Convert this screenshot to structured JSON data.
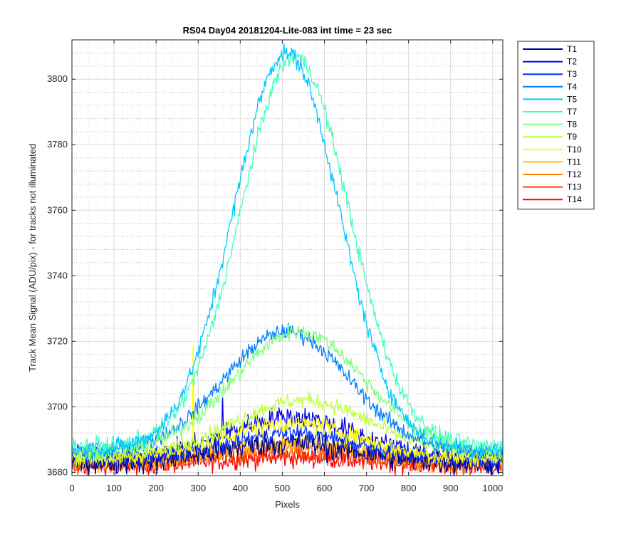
{
  "chart_data": {
    "type": "line",
    "title": "RS04 Day04 20181204-Lite-083 int time = 23 sec",
    "xlabel": "Pixels",
    "ylabel": "Track Mean Signal (ADU/pix) - for tracks not illuminated",
    "xlim": [
      0,
      1024
    ],
    "ylim": [
      3679,
      3812
    ],
    "xticks": [
      0,
      100,
      200,
      300,
      400,
      500,
      600,
      700,
      800,
      900,
      1000
    ],
    "yticks": [
      3680,
      3700,
      3720,
      3740,
      3760,
      3780,
      3800
    ],
    "grid": "major and minor",
    "legend_position": "outside-right",
    "series": [
      {
        "name": "T1",
        "color": "#00008f",
        "base": 3683,
        "peak": 3689,
        "center": 510,
        "width": 260,
        "noise": 2.0
      },
      {
        "name": "T2",
        "color": "#0000f0",
        "base": 3684,
        "peak": 3697,
        "center": 520,
        "width": 260,
        "noise": 1.6,
        "spike": {
          "x": 358,
          "y": 3703.5
        }
      },
      {
        "name": "T3",
        "color": "#0030ff",
        "base": 3684,
        "peak": 3692,
        "center": 520,
        "width": 260,
        "noise": 1.4
      },
      {
        "name": "T4",
        "color": "#007fff",
        "base": 3686,
        "peak": 3723,
        "center": 510,
        "width": 250,
        "noise": 1.2
      },
      {
        "name": "T5",
        "color": "#00c8ff",
        "base": 3687,
        "peak": 3808,
        "center": 510,
        "width": 210,
        "noise": 1.3
      },
      {
        "name": "T7",
        "color": "#40ffbf",
        "base": 3688,
        "peak": 3807,
        "center": 530,
        "width": 215,
        "noise": 1.3
      },
      {
        "name": "T8",
        "color": "#80ff80",
        "base": 3686,
        "peak": 3723,
        "center": 540,
        "width": 260,
        "noise": 1.2
      },
      {
        "name": "T9",
        "color": "#bfff40",
        "base": 3685,
        "peak": 3702,
        "center": 550,
        "width": 270,
        "noise": 1.2
      },
      {
        "name": "T10",
        "color": "#ffff00",
        "base": 3684,
        "peak": 3695,
        "center": 520,
        "width": 270,
        "noise": 1.3,
        "spike": {
          "x": 288,
          "y": 3718.5
        }
      },
      {
        "name": "T11",
        "color": "#ffbf00",
        "base": 3683,
        "peak": 3689,
        "center": 520,
        "width": 280,
        "noise": 1.4
      },
      {
        "name": "T12",
        "color": "#ff8000",
        "base": 3683,
        "peak": 3688,
        "center": 520,
        "width": 280,
        "noise": 1.4
      },
      {
        "name": "T13",
        "color": "#ff4000",
        "base": 3682,
        "peak": 3686,
        "center": 520,
        "width": 280,
        "noise": 1.5
      },
      {
        "name": "T14",
        "color": "#ff0000",
        "base": 3682,
        "peak": 3684.5,
        "center": 520,
        "width": 280,
        "noise": 1.5
      }
    ]
  }
}
